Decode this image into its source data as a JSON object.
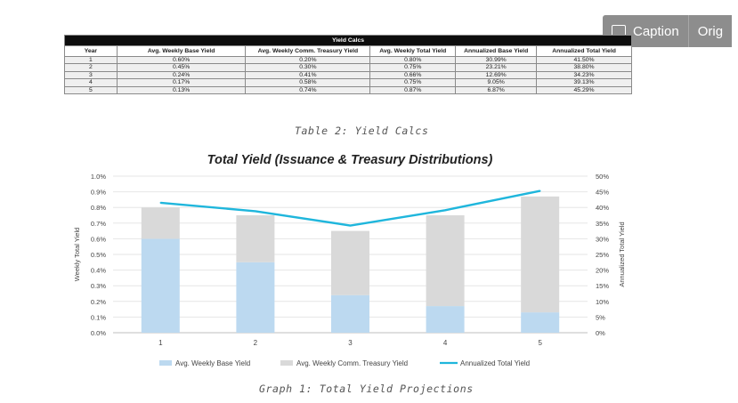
{
  "toolbar": {
    "caption_label": "Caption",
    "original_label": "Orig"
  },
  "table": {
    "title": "Yield Calcs",
    "headers": [
      "Year",
      "Avg. Weekly Base Yield",
      "Avg. Weekly Comm. Treasury Yield",
      "Avg. Weekly Total Yield",
      "Annualized Base Yield",
      "Annualized Total Yield"
    ],
    "rows": [
      [
        "1",
        "0.60%",
        "0.20%",
        "0.80%",
        "30.99%",
        "41.50%"
      ],
      [
        "2",
        "0.45%",
        "0.30%",
        "0.75%",
        "23.21%",
        "38.80%"
      ],
      [
        "3",
        "0.24%",
        "0.41%",
        "0.66%",
        "12.69%",
        "34.23%"
      ],
      [
        "4",
        "0.17%",
        "0.58%",
        "0.75%",
        "9.05%",
        "39.13%"
      ],
      [
        "5",
        "0.13%",
        "0.74%",
        "0.87%",
        "6.87%",
        "45.29%"
      ]
    ],
    "caption": "Table 2: Yield Calcs"
  },
  "chart_data": {
    "type": "bar",
    "title": "Total Yield (Issuance & Treasury Distributions)",
    "categories": [
      "1",
      "2",
      "3",
      "4",
      "5"
    ],
    "ylabel": "Weekly Total Yield",
    "y2label": "Annualized Total Yield",
    "ylim": [
      0,
      1.0
    ],
    "y2lim": [
      0,
      50
    ],
    "yticks": [
      "0.0%",
      "0.1%",
      "0.2%",
      "0.3%",
      "0.4%",
      "0.5%",
      "0.6%",
      "0.7%",
      "0.8%",
      "0.9%",
      "1.0%"
    ],
    "y2ticks": [
      "0%",
      "5%",
      "10%",
      "15%",
      "20%",
      "25%",
      "30%",
      "35%",
      "40%",
      "45%",
      "50%"
    ],
    "stacked": true,
    "grid": true,
    "legend_position": "bottom",
    "series": [
      {
        "name": "Avg. Weekly Base Yield",
        "kind": "bar",
        "axis": "left",
        "color": "#bcd9f0",
        "values": [
          0.6,
          0.45,
          0.24,
          0.17,
          0.13
        ]
      },
      {
        "name": "Avg. Weekly Comm. Treasury Yield",
        "kind": "bar",
        "axis": "left",
        "color": "#d9d9d9",
        "values": [
          0.2,
          0.3,
          0.41,
          0.58,
          0.74
        ]
      },
      {
        "name": "Annualized Total Yield",
        "kind": "line",
        "axis": "right",
        "color": "#1fb6dc",
        "values": [
          41.5,
          38.8,
          34.23,
          39.13,
          45.29
        ]
      }
    ],
    "caption": "Graph 1: Total Yield Projections"
  }
}
